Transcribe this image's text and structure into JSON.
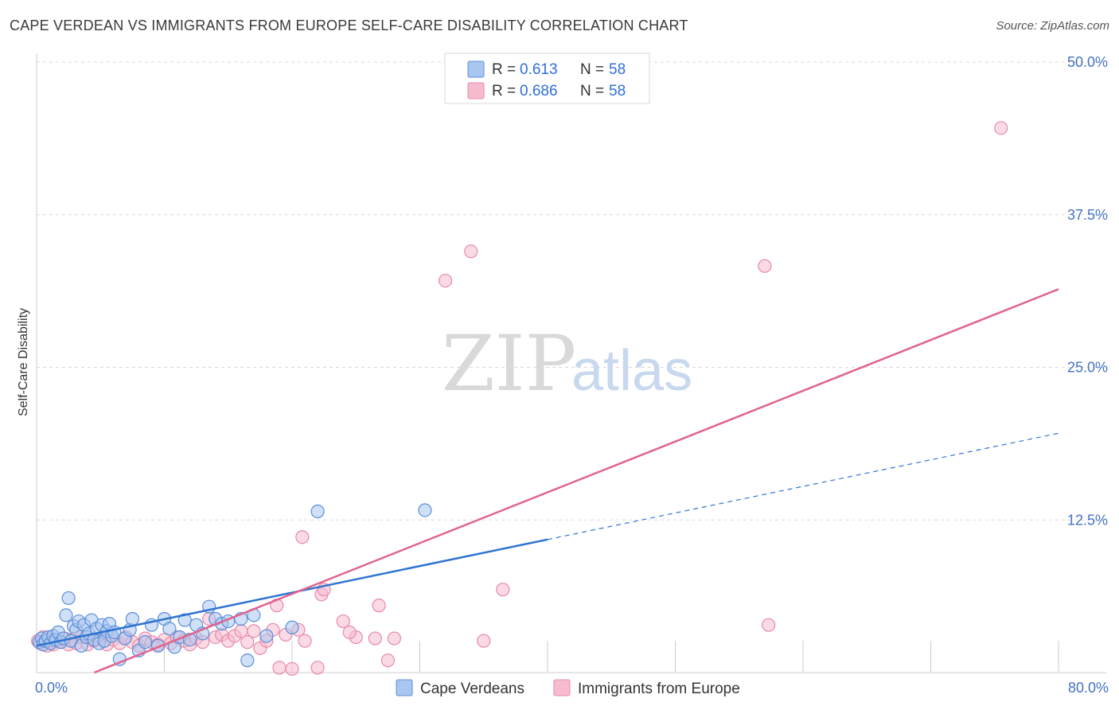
{
  "chart_data": {
    "type": "scatter",
    "title": "CAPE VERDEAN VS IMMIGRANTS FROM EUROPE SELF-CARE DISABILITY CORRELATION CHART",
    "source": "Source: ZipAtlas.com",
    "xlabel": "",
    "ylabel": "Self-Care Disability",
    "xlim": [
      0,
      80
    ],
    "ylim": [
      0,
      52
    ],
    "x_tick_labels": [
      "0.0%",
      "80.0%"
    ],
    "y_ticks": [
      12.5,
      25.0,
      37.5,
      50.0
    ],
    "y_tick_labels": [
      "12.5%",
      "25.0%",
      "37.5%",
      "50.0%"
    ],
    "watermark": {
      "zip": "ZIP",
      "atlas": "atlas"
    },
    "legend": {
      "stats": [
        {
          "r_label": "R =",
          "r_value": "0.613",
          "n_label": "N =",
          "n_value": "58"
        },
        {
          "r_label": "R =",
          "r_value": "0.686",
          "n_label": "N =",
          "n_value": "58"
        }
      ]
    },
    "colors": {
      "blue_fill": "#a9c6f0",
      "blue_stroke": "#5b8fd8",
      "blue_line": "#2e74d0",
      "pink_fill": "#f6bccd",
      "pink_stroke": "#e88aa8",
      "pink_line": "#e0648f",
      "grid": "#d9d9d9"
    },
    "series": [
      {
        "name": "Cape Verdeans",
        "trend": {
          "x0": 0,
          "y0": 2.2,
          "x1": 40,
          "y1": 10.9,
          "dashed_to_x": 80,
          "dashed_to_y": 19.6
        },
        "points": [
          [
            0.2,
            2.5
          ],
          [
            0.4,
            2.8
          ],
          [
            0.5,
            2.3
          ],
          [
            0.7,
            2.6
          ],
          [
            0.9,
            2.9
          ],
          [
            1.1,
            2.4
          ],
          [
            1.3,
            3.0
          ],
          [
            1.5,
            2.7
          ],
          [
            1.7,
            3.3
          ],
          [
            1.9,
            2.5
          ],
          [
            2.1,
            2.8
          ],
          [
            2.3,
            4.7
          ],
          [
            2.5,
            6.1
          ],
          [
            2.7,
            2.6
          ],
          [
            2.9,
            3.8
          ],
          [
            3.1,
            3.5
          ],
          [
            3.3,
            4.2
          ],
          [
            3.5,
            2.2
          ],
          [
            3.7,
            3.9
          ],
          [
            3.9,
            2.9
          ],
          [
            4.1,
            3.2
          ],
          [
            4.3,
            4.3
          ],
          [
            4.5,
            2.7
          ],
          [
            4.7,
            3.6
          ],
          [
            4.9,
            2.4
          ],
          [
            5.1,
            3.9
          ],
          [
            5.3,
            2.6
          ],
          [
            5.5,
            3.4
          ],
          [
            5.7,
            4.0
          ],
          [
            5.9,
            3.0
          ],
          [
            6.1,
            3.3
          ],
          [
            6.5,
            1.1
          ],
          [
            6.9,
            2.8
          ],
          [
            7.3,
            3.5
          ],
          [
            7.5,
            4.4
          ],
          [
            8.0,
            1.8
          ],
          [
            8.5,
            2.5
          ],
          [
            9.0,
            3.9
          ],
          [
            9.5,
            2.2
          ],
          [
            10.0,
            4.4
          ],
          [
            10.4,
            3.6
          ],
          [
            10.8,
            2.1
          ],
          [
            11.2,
            2.9
          ],
          [
            11.6,
            4.3
          ],
          [
            12.0,
            2.7
          ],
          [
            12.5,
            3.9
          ],
          [
            13.0,
            3.2
          ],
          [
            13.5,
            5.4
          ],
          [
            14.0,
            4.4
          ],
          [
            14.5,
            4.0
          ],
          [
            15.0,
            4.2
          ],
          [
            16.0,
            4.4
          ],
          [
            16.5,
            1.0
          ],
          [
            17.0,
            4.7
          ],
          [
            18.0,
            3.0
          ],
          [
            20.0,
            3.7
          ],
          [
            22.0,
            13.2
          ],
          [
            30.4,
            13.3
          ]
        ]
      },
      {
        "name": "Immigrants from Europe",
        "trend": {
          "x0": 4.5,
          "y0": 0.0,
          "x1": 80,
          "y1": 31.4
        },
        "points": [
          [
            0.1,
            2.6
          ],
          [
            0.3,
            2.4
          ],
          [
            0.5,
            2.9
          ],
          [
            0.8,
            2.2
          ],
          [
            1.0,
            2.7
          ],
          [
            1.3,
            2.3
          ],
          [
            1.6,
            2.6
          ],
          [
            1.9,
            2.5
          ],
          [
            2.2,
            2.8
          ],
          [
            2.5,
            2.3
          ],
          [
            2.8,
            2.7
          ],
          [
            3.1,
            2.4
          ],
          [
            3.5,
            2.9
          ],
          [
            4.0,
            2.3
          ],
          [
            4.5,
            2.6
          ],
          [
            5.0,
            2.8
          ],
          [
            5.5,
            2.3
          ],
          [
            6.0,
            2.7
          ],
          [
            6.5,
            2.4
          ],
          [
            7.0,
            2.9
          ],
          [
            7.5,
            2.5
          ],
          [
            8.0,
            2.2
          ],
          [
            8.5,
            2.8
          ],
          [
            9.0,
            2.5
          ],
          [
            9.5,
            2.3
          ],
          [
            10.0,
            2.7
          ],
          [
            10.5,
            2.4
          ],
          [
            11.0,
            2.9
          ],
          [
            11.5,
            2.6
          ],
          [
            12.0,
            2.3
          ],
          [
            12.5,
            2.8
          ],
          [
            13.0,
            2.5
          ],
          [
            13.5,
            4.4
          ],
          [
            14.0,
            2.9
          ],
          [
            14.5,
            3.1
          ],
          [
            15.0,
            2.6
          ],
          [
            15.5,
            3.0
          ],
          [
            16.0,
            3.4
          ],
          [
            16.5,
            2.5
          ],
          [
            17.0,
            3.4
          ],
          [
            17.5,
            2.0
          ],
          [
            18.0,
            2.6
          ],
          [
            18.5,
            3.5
          ],
          [
            19.0,
            0.4
          ],
          [
            19.5,
            3.1
          ],
          [
            20.0,
            0.3
          ],
          [
            20.5,
            3.5
          ],
          [
            21.0,
            2.6
          ],
          [
            22.0,
            0.4
          ],
          [
            24.0,
            4.2
          ],
          [
            25.0,
            2.9
          ],
          [
            26.5,
            2.8
          ],
          [
            27.5,
            1.0
          ],
          [
            28.0,
            2.8
          ],
          [
            32.0,
            32.1
          ],
          [
            34.0,
            34.5
          ],
          [
            57.0,
            33.3
          ],
          [
            75.5,
            44.6
          ]
        ]
      }
    ],
    "extra_points": {
      "pink": [
        [
          20.8,
          11.1
        ],
        [
          22.3,
          6.4
        ],
        [
          22.5,
          6.8
        ],
        [
          18.8,
          5.5
        ],
        [
          24.5,
          3.3
        ],
        [
          26.8,
          5.5
        ],
        [
          35.0,
          2.6
        ],
        [
          36.5,
          6.8
        ],
        [
          57.3,
          3.9
        ],
        [
          1.2,
          2.6
        ]
      ]
    }
  },
  "legend_bottom": {
    "items": [
      {
        "label": "Cape Verdeans"
      },
      {
        "label": "Immigrants from Europe"
      }
    ]
  }
}
